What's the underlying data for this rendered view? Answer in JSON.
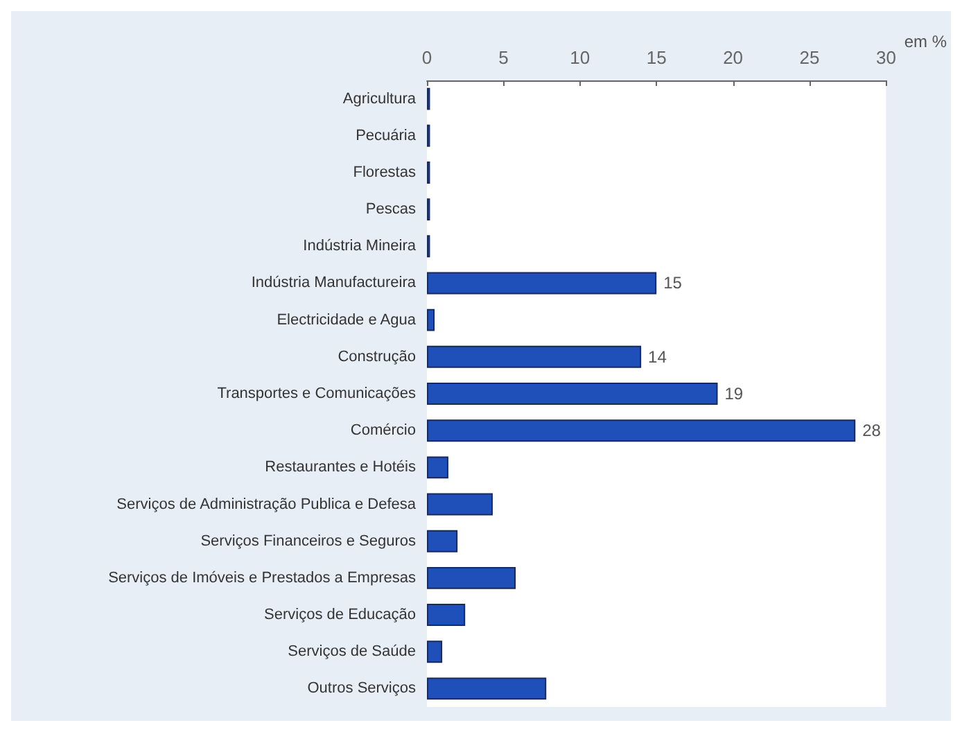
{
  "chart_data": {
    "type": "bar",
    "orientation": "horizontal",
    "xlabel": "em %",
    "categories": [
      "Agricultura",
      "Pecuária",
      "Florestas",
      "Pescas",
      "Indústria Mineira",
      "Indústria Manufactureira",
      "Electricidade e Agua",
      "Construção",
      "Transportes e Comunicações",
      "Comércio",
      "Restaurantes e Hotéis",
      "Serviços de Administração Publica e Defesa",
      "Serviços Financeiros e Seguros",
      "Serviços de Imóveis e Prestados a Empresas",
      "Serviços de Educação",
      "Serviços de Saúde",
      "Outros Serviços"
    ],
    "values": [
      0.2,
      0.2,
      0.2,
      0.2,
      0.2,
      15,
      0.5,
      14,
      19,
      28,
      1.4,
      4.3,
      2,
      5.8,
      2.5,
      1,
      7.8
    ],
    "value_labels": [
      null,
      null,
      null,
      null,
      null,
      "15",
      null,
      "14",
      "19",
      "28",
      null,
      null,
      null,
      null,
      null,
      null,
      null
    ],
    "color": "#1f4fb8",
    "xlim": [
      0,
      30
    ],
    "xticks": [
      0,
      5,
      10,
      15,
      20,
      25,
      30
    ],
    "grid": false
  }
}
